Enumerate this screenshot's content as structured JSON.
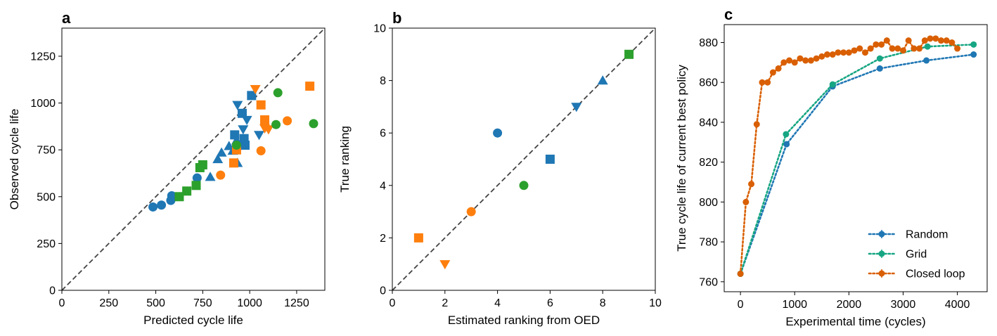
{
  "colors": {
    "blue": "#1f77b4",
    "orange": "#ff7f0e",
    "green": "#2ca02c",
    "random": "#1f77b4",
    "grid": "#17a683",
    "closed_loop": "#d95f02",
    "diagonal": "#444444"
  },
  "chart_data": [
    {
      "type": "scatter",
      "panel_label": "a",
      "xlabel": "Predicted cycle life",
      "ylabel": "Observed cycle life",
      "xlim": [
        0,
        1400
      ],
      "ylim": [
        0,
        1400
      ],
      "xticks": [
        0,
        250,
        500,
        750,
        1000,
        1250
      ],
      "yticks": [
        0,
        250,
        500,
        750,
        1000,
        1250
      ],
      "diagonal": true,
      "points": [
        {
          "x": 485,
          "y": 445,
          "color": "blue",
          "marker": "circle"
        },
        {
          "x": 530,
          "y": 455,
          "color": "blue",
          "marker": "circle"
        },
        {
          "x": 580,
          "y": 480,
          "color": "blue",
          "marker": "circle"
        },
        {
          "x": 585,
          "y": 505,
          "color": "blue",
          "marker": "circle"
        },
        {
          "x": 720,
          "y": 600,
          "color": "blue",
          "marker": "circle"
        },
        {
          "x": 790,
          "y": 605,
          "color": "blue",
          "marker": "triangle"
        },
        {
          "x": 830,
          "y": 700,
          "color": "blue",
          "marker": "triangle"
        },
        {
          "x": 850,
          "y": 735,
          "color": "blue",
          "marker": "triangle"
        },
        {
          "x": 890,
          "y": 770,
          "color": "blue",
          "marker": "triangle"
        },
        {
          "x": 910,
          "y": 745,
          "color": "blue",
          "marker": "triangle"
        },
        {
          "x": 930,
          "y": 800,
          "color": "blue",
          "marker": "triangle"
        },
        {
          "x": 935,
          "y": 680,
          "color": "blue",
          "marker": "triangle"
        },
        {
          "x": 920,
          "y": 830,
          "color": "blue",
          "marker": "square"
        },
        {
          "x": 960,
          "y": 945,
          "color": "blue",
          "marker": "square"
        },
        {
          "x": 970,
          "y": 810,
          "color": "blue",
          "marker": "square"
        },
        {
          "x": 975,
          "y": 775,
          "color": "blue",
          "marker": "square"
        },
        {
          "x": 1010,
          "y": 1040,
          "color": "blue",
          "marker": "square"
        },
        {
          "x": 935,
          "y": 990,
          "color": "blue",
          "marker": "triangle_down"
        },
        {
          "x": 985,
          "y": 910,
          "color": "blue",
          "marker": "triangle_down"
        },
        {
          "x": 965,
          "y": 860,
          "color": "blue",
          "marker": "triangle_down"
        },
        {
          "x": 1050,
          "y": 830,
          "color": "blue",
          "marker": "triangle_down"
        },
        {
          "x": 845,
          "y": 615,
          "color": "orange",
          "marker": "circle"
        },
        {
          "x": 1060,
          "y": 745,
          "color": "orange",
          "marker": "circle"
        },
        {
          "x": 1200,
          "y": 905,
          "color": "orange",
          "marker": "circle"
        },
        {
          "x": 915,
          "y": 680,
          "color": "orange",
          "marker": "square"
        },
        {
          "x": 930,
          "y": 750,
          "color": "orange",
          "marker": "square"
        },
        {
          "x": 1060,
          "y": 990,
          "color": "orange",
          "marker": "square"
        },
        {
          "x": 1080,
          "y": 910,
          "color": "orange",
          "marker": "square"
        },
        {
          "x": 1320,
          "y": 1090,
          "color": "orange",
          "marker": "square"
        },
        {
          "x": 1030,
          "y": 1075,
          "color": "orange",
          "marker": "triangle_down"
        },
        {
          "x": 1080,
          "y": 865,
          "color": "orange",
          "marker": "triangle_down"
        },
        {
          "x": 1100,
          "y": 860,
          "color": "orange",
          "marker": "triangle_down"
        },
        {
          "x": 625,
          "y": 500,
          "color": "green",
          "marker": "square"
        },
        {
          "x": 665,
          "y": 530,
          "color": "green",
          "marker": "square"
        },
        {
          "x": 715,
          "y": 560,
          "color": "green",
          "marker": "square"
        },
        {
          "x": 735,
          "y": 655,
          "color": "green",
          "marker": "square"
        },
        {
          "x": 750,
          "y": 670,
          "color": "green",
          "marker": "square"
        },
        {
          "x": 930,
          "y": 775,
          "color": "green",
          "marker": "circle"
        },
        {
          "x": 1140,
          "y": 885,
          "color": "green",
          "marker": "circle"
        },
        {
          "x": 1150,
          "y": 1055,
          "color": "green",
          "marker": "circle"
        },
        {
          "x": 1340,
          "y": 890,
          "color": "green",
          "marker": "circle"
        }
      ]
    },
    {
      "type": "scatter",
      "panel_label": "b",
      "xlabel": "Estimated ranking from OED",
      "ylabel": "True ranking",
      "xlim": [
        0,
        10
      ],
      "ylim": [
        0,
        10
      ],
      "xticks": [
        0,
        2,
        4,
        6,
        8,
        10
      ],
      "yticks": [
        0,
        2,
        4,
        6,
        8,
        10
      ],
      "diagonal": true,
      "points": [
        {
          "x": 1,
          "y": 2,
          "color": "orange",
          "marker": "square"
        },
        {
          "x": 2,
          "y": 1,
          "color": "orange",
          "marker": "triangle_down"
        },
        {
          "x": 3,
          "y": 3,
          "color": "orange",
          "marker": "circle"
        },
        {
          "x": 4,
          "y": 6,
          "color": "blue",
          "marker": "circle"
        },
        {
          "x": 5,
          "y": 4,
          "color": "green",
          "marker": "circle"
        },
        {
          "x": 6,
          "y": 5,
          "color": "blue",
          "marker": "square"
        },
        {
          "x": 7,
          "y": 7,
          "color": "blue",
          "marker": "triangle_down"
        },
        {
          "x": 8,
          "y": 8,
          "color": "blue",
          "marker": "triangle"
        },
        {
          "x": 9,
          "y": 9,
          "color": "green",
          "marker": "square"
        }
      ]
    },
    {
      "type": "line",
      "panel_label": "c",
      "xlabel": "Experimental time (cycles)",
      "ylabel": "True cycle life of current best policy",
      "xlim": [
        -300,
        4550
      ],
      "ylim": [
        755,
        889
      ],
      "xticks": [
        0,
        1000,
        2000,
        3000,
        4000
      ],
      "yticks": [
        760,
        780,
        800,
        820,
        840,
        860,
        880
      ],
      "legend_position": "lower-right",
      "series": [
        {
          "name": "Random",
          "color": "random",
          "x": [
            0,
            850,
            1700,
            2570,
            3430,
            4300
          ],
          "y": [
            764,
            829,
            858,
            867,
            871,
            874
          ]
        },
        {
          "name": "Grid",
          "color": "grid",
          "x": [
            0,
            840,
            1700,
            2570,
            3450,
            4300
          ],
          "y": [
            764,
            834,
            859,
            872,
            878,
            879
          ]
        },
        {
          "name": "Closed loop",
          "color": "closed_loop",
          "x": [
            0,
            100,
            200,
            300,
            400,
            500,
            600,
            700,
            800,
            900,
            1000,
            1100,
            1200,
            1300,
            1400,
            1500,
            1600,
            1700,
            1800,
            1900,
            2000,
            2100,
            2200,
            2300,
            2400,
            2500,
            2600,
            2700,
            2800,
            2900,
            3000,
            3100,
            3200,
            3300,
            3400,
            3500,
            3600,
            3700,
            3800,
            3900,
            4000
          ],
          "y": [
            764,
            800,
            809,
            839,
            860,
            860,
            865,
            867,
            870,
            871,
            870,
            872,
            871,
            871,
            872,
            873,
            874,
            874,
            875,
            875,
            875,
            876,
            877,
            875,
            877,
            879,
            879,
            881,
            877,
            877,
            876,
            881,
            877,
            877,
            881,
            882,
            882,
            881,
            881,
            880,
            877
          ]
        }
      ]
    }
  ]
}
